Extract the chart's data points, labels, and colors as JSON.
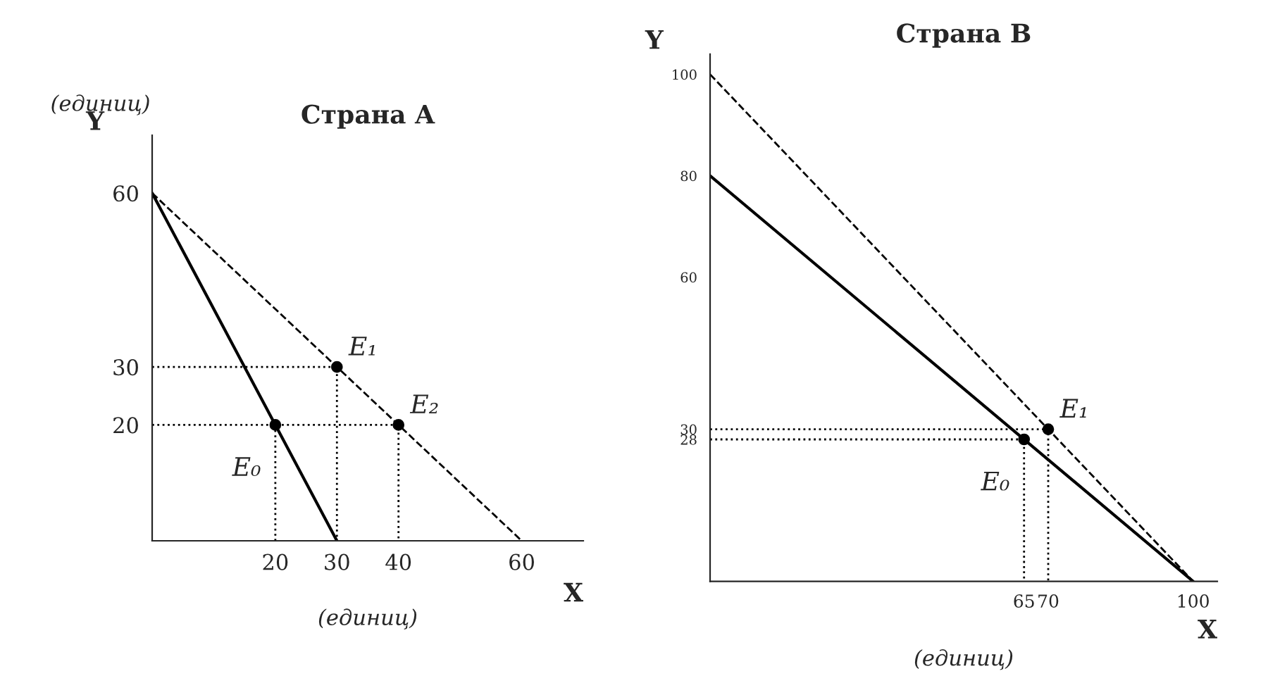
{
  "chart_data": [
    {
      "type": "line",
      "title": "Страна A",
      "xlabel": "X",
      "ylabel": "Y",
      "xlim": [
        0,
        70
      ],
      "ylim": [
        0,
        70
      ],
      "xticks": [
        20,
        30,
        40,
        60
      ],
      "yticks": [
        20,
        30,
        60
      ],
      "series": [
        {
          "color": "#000000",
          "line_style": "solid",
          "x": [
            0,
            30
          ],
          "values": [
            60,
            0
          ]
        },
        {
          "color": "#000000",
          "line_style": "dashed",
          "x": [
            0,
            60
          ],
          "values": [
            60,
            0
          ]
        },
        {
          "color": "#000000",
          "line_style": "dotted",
          "x": [
            0,
            30,
            30
          ],
          "values": [
            30,
            30,
            0
          ]
        },
        {
          "color": "#000000",
          "line_style": "dotted",
          "x": [
            0,
            40,
            40
          ],
          "values": [
            20,
            20,
            0
          ]
        },
        {
          "color": "#000000",
          "line_style": "dotted",
          "x": [
            20,
            20
          ],
          "values": [
            20,
            0
          ]
        },
        {
          "type": "scatter",
          "color": "#000000",
          "marker": "circle",
          "x": [
            20,
            30,
            40
          ],
          "values": [
            20,
            30,
            20
          ]
        }
      ],
      "annotations": [
        "(единиц)",
        "(единиц)",
        {
          "text": "E₀",
          "x": 20,
          "y": 20
        },
        {
          "text": "E₁",
          "x": 30,
          "y": 30
        },
        {
          "text": "E₂",
          "x": 40,
          "y": 20
        }
      ]
    },
    {
      "type": "line",
      "title": "Страна B",
      "xlabel": "X",
      "ylabel": "Y",
      "xlim": [
        0,
        105
      ],
      "ylim": [
        0,
        104
      ],
      "xticks": [
        65,
        70,
        100
      ],
      "yticks": [
        28,
        30,
        60,
        80,
        100
      ],
      "series": [
        {
          "color": "#000000",
          "line_style": "solid",
          "x": [
            0,
            100
          ],
          "values": [
            80,
            0
          ]
        },
        {
          "color": "#000000",
          "line_style": "dashed",
          "x": [
            0,
            100
          ],
          "values": [
            100,
            0
          ]
        },
        {
          "color": "#000000",
          "line_style": "dotted",
          "x": [
            0,
            70,
            70
          ],
          "values": [
            30,
            30,
            0
          ]
        },
        {
          "color": "#000000",
          "line_style": "dotted",
          "x": [
            0,
            65,
            65
          ],
          "values": [
            28,
            28,
            0
          ]
        },
        {
          "type": "scatter",
          "color": "#000000",
          "marker": "circle",
          "x": [
            65,
            70
          ],
          "values": [
            28,
            30
          ]
        }
      ],
      "annotations": [
        "(единиц)",
        {
          "text": "E₀",
          "x": 65,
          "y": 28
        },
        {
          "text": "E₁",
          "x": 70,
          "y": 30
        }
      ]
    }
  ]
}
